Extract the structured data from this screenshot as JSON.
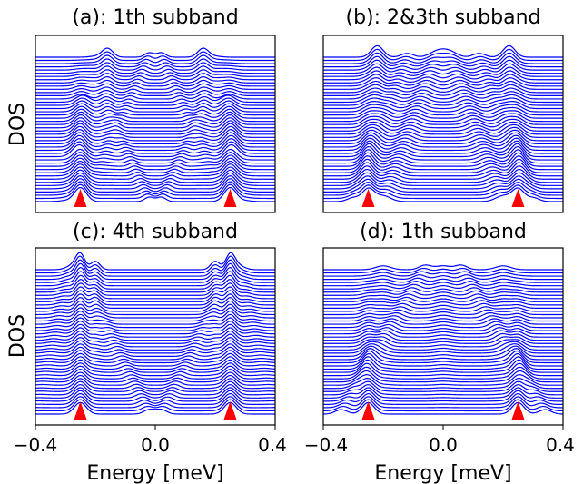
{
  "chart_data": [
    {
      "type": "line",
      "title": "(a): 1th subband",
      "ylabel": "DOS",
      "xlabel": "",
      "xlim": [
        -0.4,
        0.4
      ],
      "xticks": [],
      "n_curves": 46,
      "markers": {
        "shape": "triangle",
        "color": "#ff0000",
        "x": [
          -0.25,
          0.25
        ]
      },
      "line_color": "#0000ff"
    },
    {
      "type": "line",
      "title": "(b): 2&3th subband",
      "ylabel": "",
      "xlabel": "",
      "xlim": [
        -0.4,
        0.4
      ],
      "xticks": [],
      "n_curves": 46,
      "markers": {
        "shape": "triangle",
        "color": "#ff0000",
        "x": [
          -0.25,
          0.25
        ]
      },
      "line_color": "#0000ff"
    },
    {
      "type": "line",
      "title": "(c): 4th subband",
      "ylabel": "DOS",
      "xlabel": "Energy [meV]",
      "xlim": [
        -0.4,
        0.4
      ],
      "xticks": [
        "−0.4",
        "0.0",
        "0.4"
      ],
      "n_curves": 46,
      "markers": {
        "shape": "triangle",
        "color": "#ff0000",
        "x": [
          -0.25,
          0.25
        ]
      },
      "line_color": "#0000ff"
    },
    {
      "type": "line",
      "title": "(d): 1th subband",
      "ylabel": "",
      "xlabel": "Energy [meV]",
      "xlim": [
        -0.4,
        0.4
      ],
      "xticks": [
        "−0.4",
        "0.0",
        "0.4"
      ],
      "n_curves": 46,
      "markers": {
        "shape": "triangle",
        "color": "#ff0000",
        "x": [
          -0.25,
          0.25
        ]
      },
      "line_color": "#0000ff"
    }
  ]
}
